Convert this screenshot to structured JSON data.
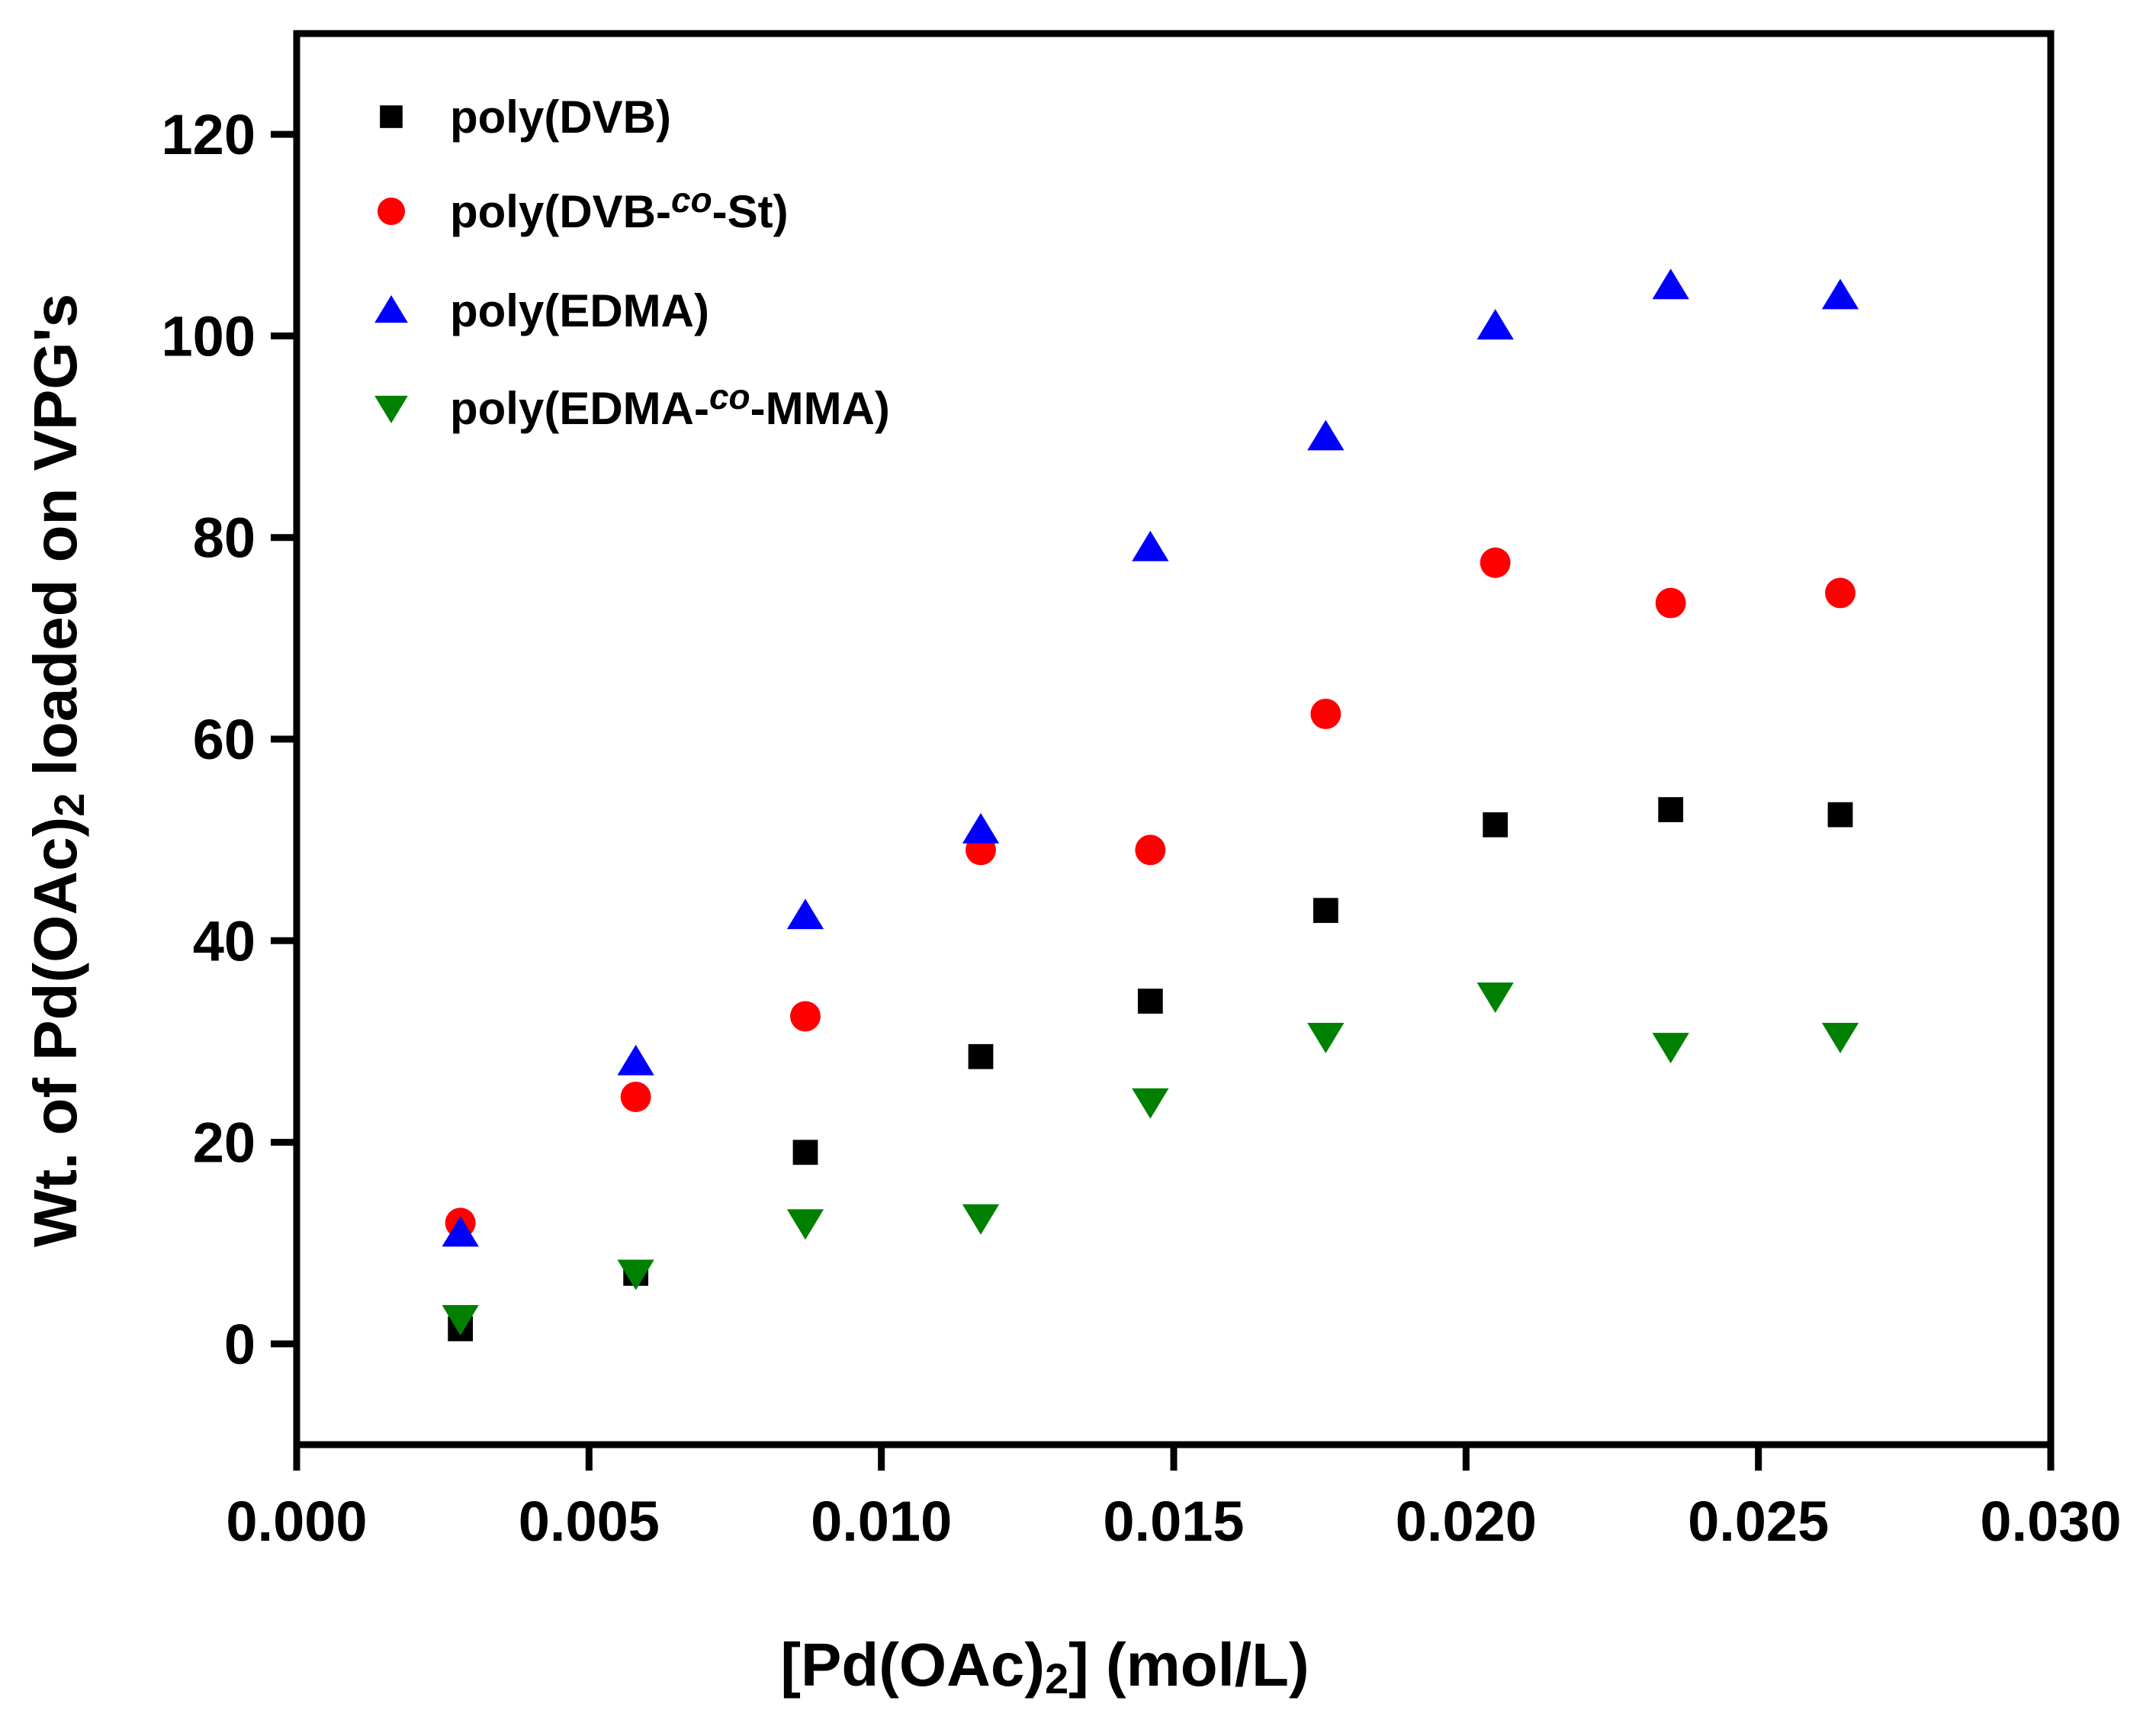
{
  "chart_data": {
    "type": "scatter",
    "title": "",
    "xlabel": {
      "pre": "[Pd(OAc)",
      "sub": "2",
      "post": "] (mol/L)"
    },
    "ylabel": {
      "pre": "Wt. of Pd(OAc)",
      "sub": "2",
      "post": " loaded on VPG's"
    },
    "xlim": [
      0,
      0.03
    ],
    "ylim": [
      -10,
      130
    ],
    "xticks": [
      0.0,
      0.005,
      0.01,
      0.015,
      0.02,
      0.025,
      0.03
    ],
    "xtick_labels": [
      "0.000",
      "0.005",
      "0.010",
      "0.015",
      "0.020",
      "0.025",
      "0.030"
    ],
    "yticks": [
      0,
      20,
      40,
      60,
      80,
      100,
      120
    ],
    "ytick_labels": [
      "0",
      "20",
      "40",
      "60",
      "80",
      "100",
      "120"
    ],
    "grid": false,
    "legend_position": "top-left",
    "x": [
      0.0028,
      0.0058,
      0.0087,
      0.0117,
      0.0146,
      0.0176,
      0.0205,
      0.0235,
      0.0264
    ],
    "series": [
      {
        "name_parts": [
          "poly(DVB)"
        ],
        "marker": "square",
        "color": "#000000",
        "values": [
          1.5,
          7,
          19,
          28.5,
          34,
          43,
          51.5,
          53,
          52.5
        ]
      },
      {
        "name_parts": [
          "poly(DVB-",
          "co",
          "-St)"
        ],
        "marker": "circle",
        "color": "#ff0000",
        "values": [
          12,
          24.5,
          32.5,
          49,
          49,
          62.5,
          77.5,
          73.5,
          74.5
        ]
      },
      {
        "name_parts": [
          "poly(EDMA)"
        ],
        "marker": "triangle-up",
        "color": "#0000ff",
        "values": [
          11,
          28,
          42.5,
          51,
          79,
          90,
          101,
          105,
          104
        ]
      },
      {
        "name_parts": [
          "poly(EDMA-",
          "co",
          "-MMA)"
        ],
        "marker": "triangle-down",
        "color": "#008000",
        "values": [
          2.5,
          7,
          12,
          12.5,
          24,
          30.5,
          34.5,
          29.5,
          30.5
        ]
      }
    ]
  }
}
